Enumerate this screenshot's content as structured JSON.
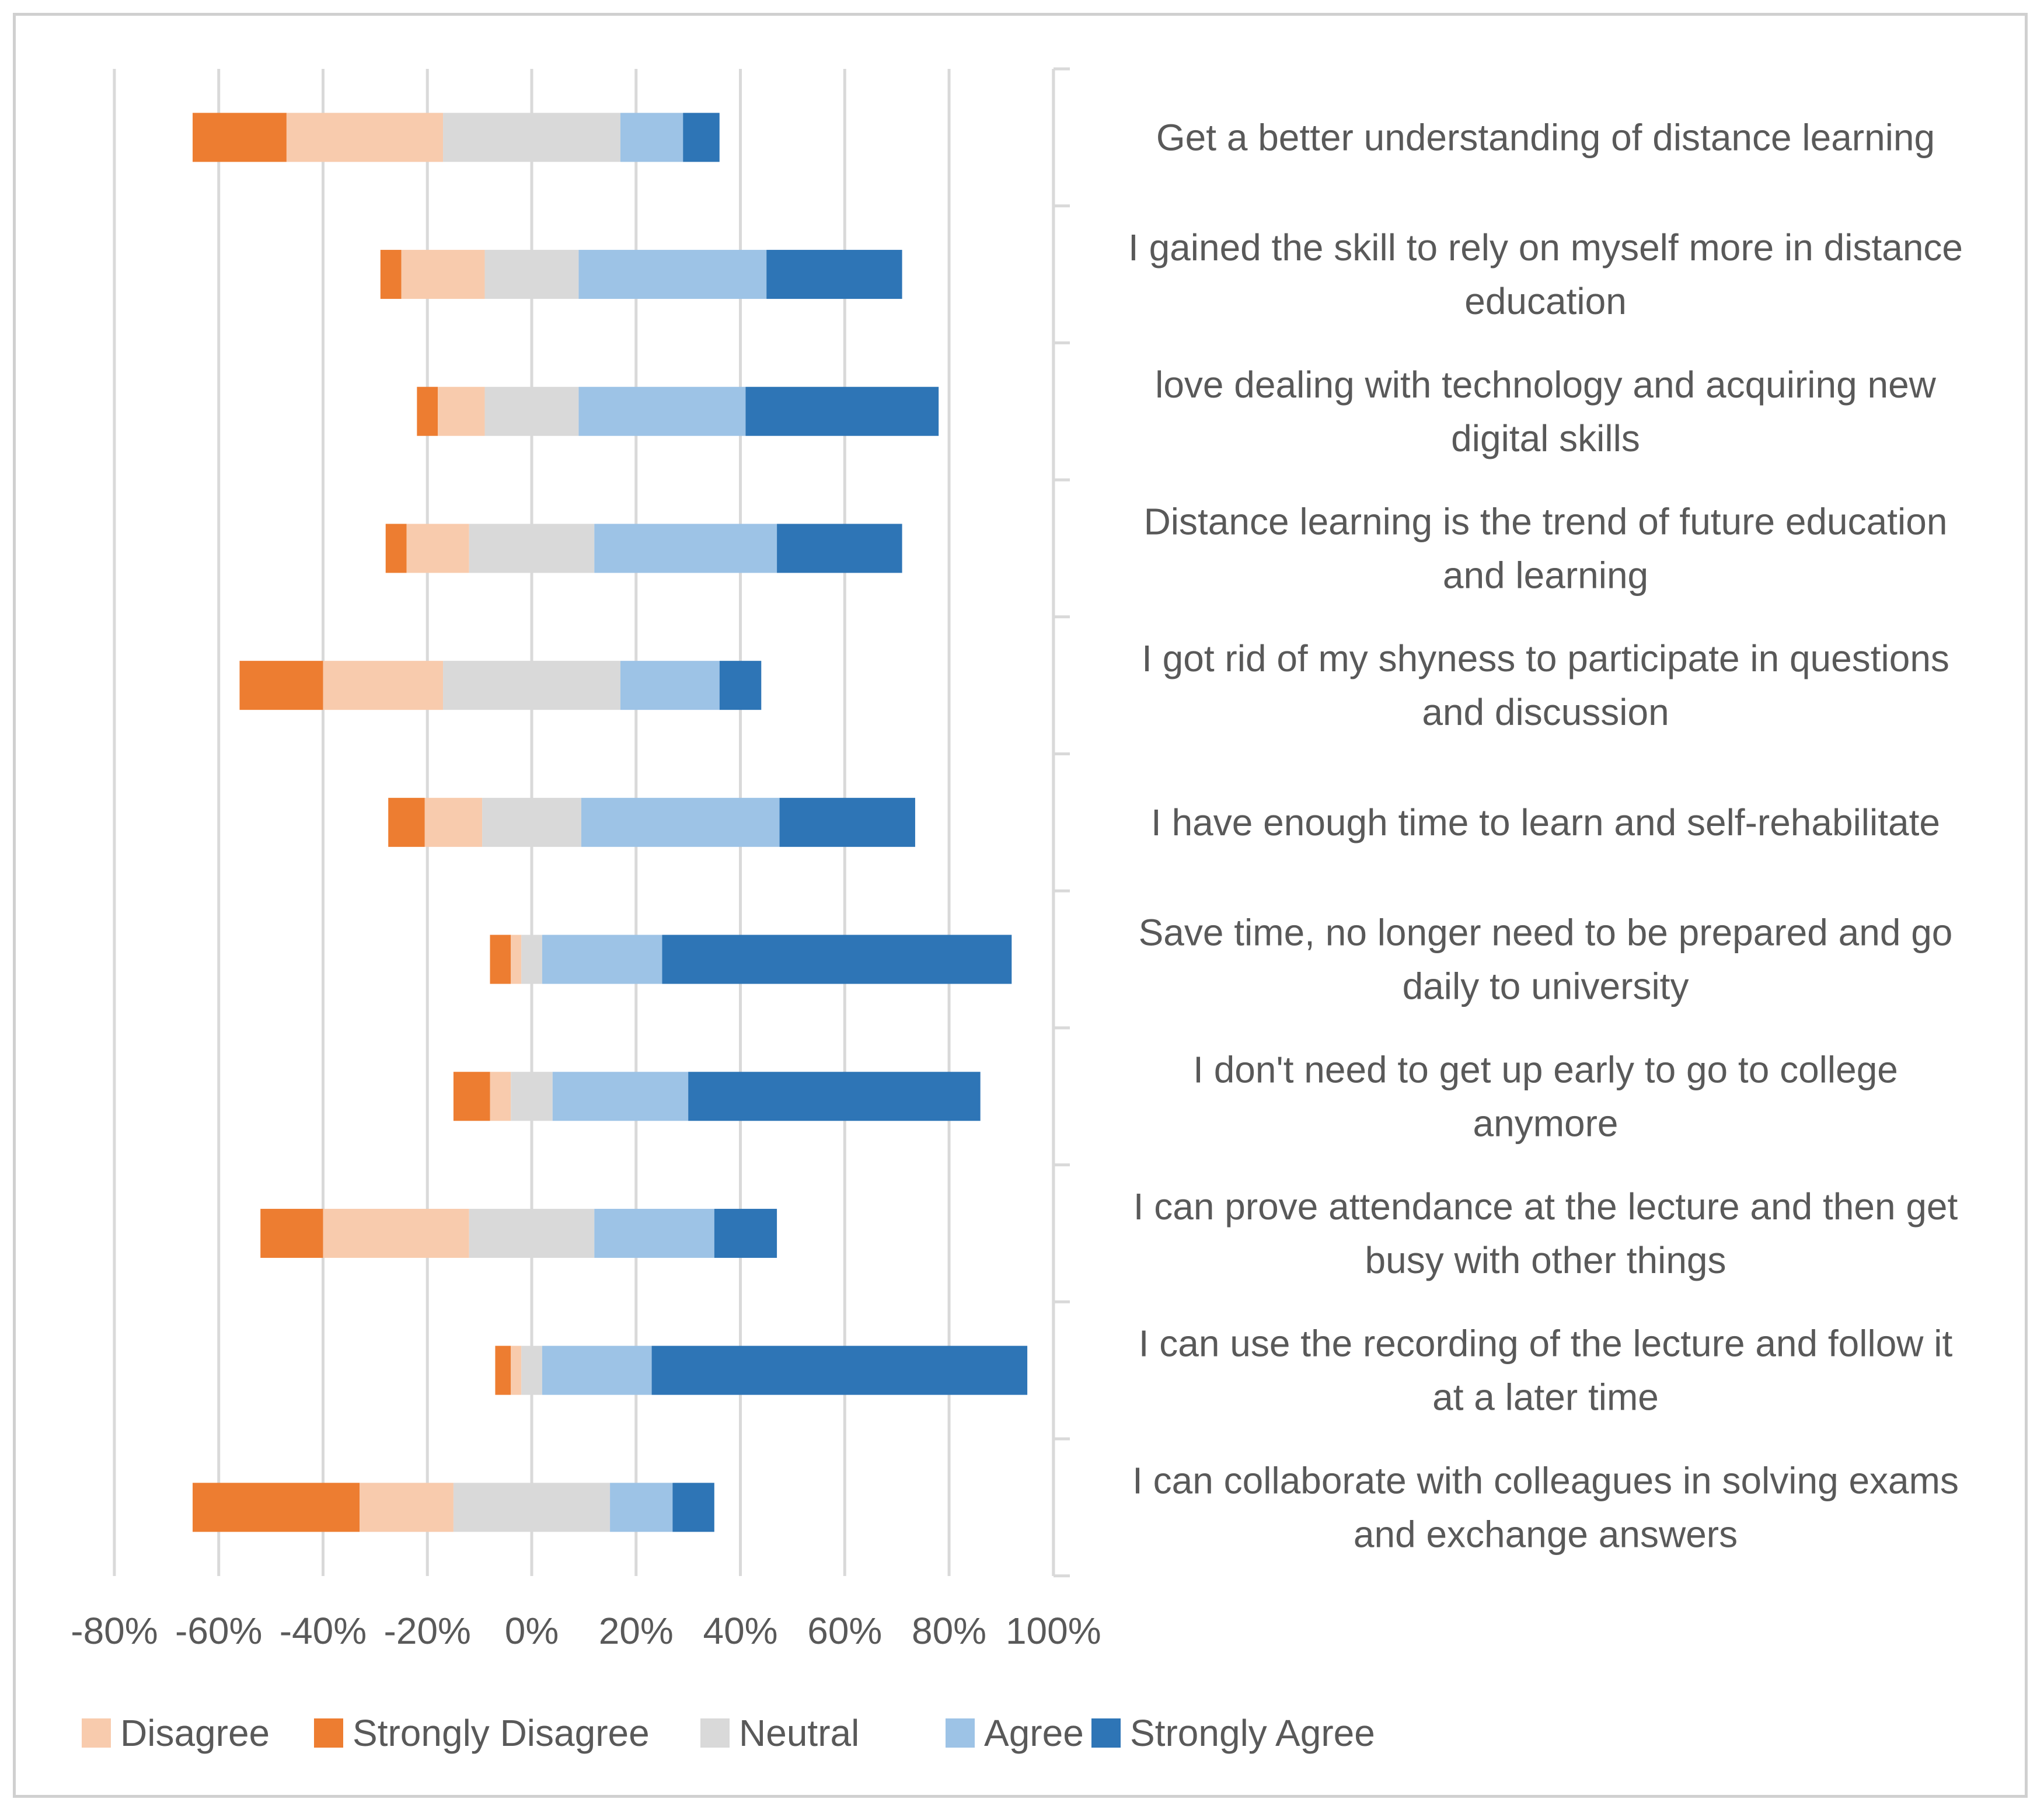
{
  "chart_data": {
    "type": "bar",
    "subtype": "diverging-stacked-horizontal",
    "title": "",
    "xlabel": "",
    "ylabel": "",
    "xlim": [
      -80,
      100
    ],
    "x_ticks": [
      -80,
      -60,
      -40,
      -20,
      0,
      20,
      40,
      60,
      80,
      100
    ],
    "x_tick_labels": [
      "-80%",
      "-60%",
      "-40%",
      "-20%",
      "0%",
      "20%",
      "40%",
      "60%",
      "80%",
      "100%"
    ],
    "grid": true,
    "legend_position": "bottom",
    "categories": [
      "Get a better understanding of distance learning",
      "I gained the skill to rely on myself more in distance education",
      "love dealing with technology and acquiring new digital skills",
      "Distance learning is the trend of future education and learning",
      "I got rid of my shyness to participate in questions and discussion",
      "I have enough time to learn and self-rehabilitate",
      "Save time, no longer need to be prepared and go daily to university",
      "I don't need to get up early to go to college anymore",
      "I can prove attendance at the lecture and then get busy with other things",
      "I can use the recording of the lecture and follow it at a later time",
      "I can collaborate with colleagues in solving exams and exchange answers"
    ],
    "category_lines": [
      [
        "Get a better understanding of distance learning"
      ],
      [
        "I gained the skill to rely on myself more in distance",
        "education"
      ],
      [
        "love dealing with technology and acquiring new",
        "digital skills"
      ],
      [
        "Distance learning is the trend of future education",
        "and learning"
      ],
      [
        "I got rid of my shyness to participate in questions",
        "and discussion"
      ],
      [
        "I have enough time to learn and self-rehabilitate"
      ],
      [
        "Save time, no longer need to be prepared and go",
        "daily to university"
      ],
      [
        "I don't need to get up early to go to college",
        "anymore"
      ],
      [
        "I can prove attendance at the lecture and then get",
        "busy with other things"
      ],
      [
        "I can use the recording of the lecture and follow it",
        "at a later time"
      ],
      [
        "I can collaborate with colleagues in solving exams",
        "and exchange answers"
      ]
    ],
    "stack_order": [
      "Strongly Disagree",
      "Disagree",
      "Neutral",
      "Agree",
      "Strongly Agree"
    ],
    "series": [
      {
        "name": "Disagree",
        "color": "#F8CBAD",
        "values": [
          30,
          16,
          9,
          12,
          23,
          11,
          2,
          4,
          28,
          2,
          18
        ]
      },
      {
        "name": "Strongly Disagree",
        "color": "#ED7D31",
        "values": [
          18,
          4,
          4,
          4,
          16,
          7,
          4,
          7,
          12,
          3,
          32
        ]
      },
      {
        "name": "Neutral",
        "color": "#D9D9D9",
        "values": [
          34,
          18,
          18,
          24,
          34,
          19,
          4,
          8,
          24,
          4,
          30
        ]
      },
      {
        "name": "Agree",
        "color": "#9DC3E6",
        "values": [
          12,
          36,
          32,
          35,
          19,
          38,
          23,
          26,
          23,
          21,
          12
        ]
      },
      {
        "name": "Strongly Agree",
        "color": "#2E75B6",
        "values": [
          7,
          26,
          37,
          24,
          8,
          26,
          67,
          56,
          12,
          72,
          8
        ]
      }
    ]
  }
}
